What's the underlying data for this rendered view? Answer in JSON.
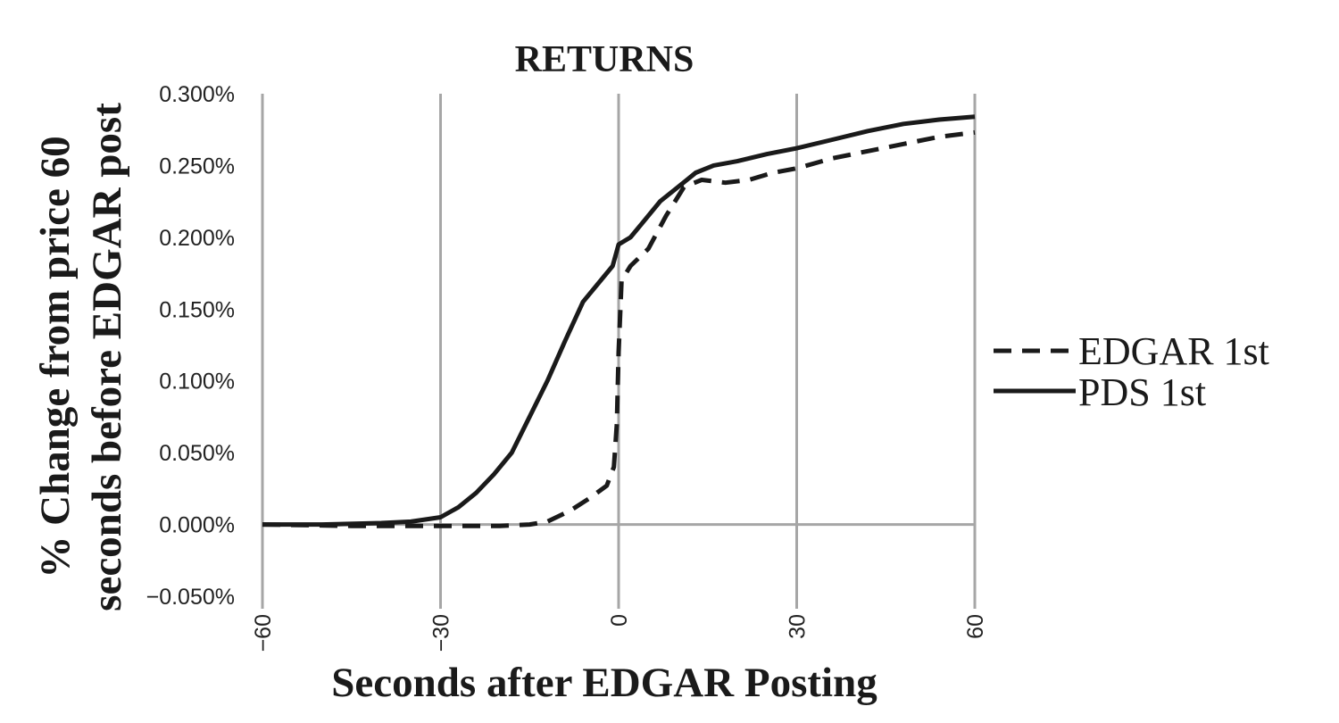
{
  "chart_data": {
    "type": "line",
    "title": "RETURNS",
    "xlabel": "Seconds after EDGAR Posting",
    "ylabel_line1": "% Change from price 60",
    "ylabel_line2": "seconds before EDGAR post",
    "xlim": [
      -60,
      60
    ],
    "ylim": [
      -0.05,
      0.3
    ],
    "x_ticks": [
      -60,
      -30,
      0,
      30,
      60
    ],
    "x_tick_labels": [
      "−60",
      "−30",
      "0",
      "30",
      "60"
    ],
    "y_ticks": [
      0.3,
      0.25,
      0.2,
      0.15,
      0.1,
      0.05,
      0.0,
      -0.05
    ],
    "y_tick_labels": [
      "0.300%",
      "0.250%",
      "0.200%",
      "0.150%",
      "0.100%",
      "0.050%",
      "0.000%",
      "−0.050%"
    ],
    "grid": "vertical",
    "legend_position": "right",
    "series": [
      {
        "name": "EDGAR 1st",
        "style": "dashed",
        "color": "#1a1a1a",
        "points": [
          [
            -60,
            0.0
          ],
          [
            -45,
            -0.001
          ],
          [
            -40,
            -0.001
          ],
          [
            -30,
            -0.001
          ],
          [
            -20,
            -0.001
          ],
          [
            -15,
            0.0
          ],
          [
            -12,
            0.002
          ],
          [
            -8,
            0.01
          ],
          [
            -5,
            0.018
          ],
          [
            -2,
            0.027
          ],
          [
            -0.8,
            0.04
          ],
          [
            -0.3,
            0.07
          ],
          [
            0,
            0.12
          ],
          [
            0.5,
            0.17
          ],
          [
            2,
            0.18
          ],
          [
            5,
            0.192
          ],
          [
            8,
            0.215
          ],
          [
            11,
            0.235
          ],
          [
            14,
            0.24
          ],
          [
            18,
            0.238
          ],
          [
            22,
            0.24
          ],
          [
            26,
            0.245
          ],
          [
            30,
            0.248
          ],
          [
            36,
            0.255
          ],
          [
            42,
            0.26
          ],
          [
            48,
            0.265
          ],
          [
            54,
            0.27
          ],
          [
            60,
            0.273
          ]
        ]
      },
      {
        "name": "PDS 1st",
        "style": "solid",
        "color": "#1a1a1a",
        "points": [
          [
            -60,
            0.0
          ],
          [
            -50,
            0.0
          ],
          [
            -40,
            0.001
          ],
          [
            -35,
            0.002
          ],
          [
            -30,
            0.005
          ],
          [
            -27,
            0.012
          ],
          [
            -24,
            0.022
          ],
          [
            -21,
            0.035
          ],
          [
            -18,
            0.05
          ],
          [
            -15,
            0.075
          ],
          [
            -12,
            0.1
          ],
          [
            -9,
            0.128
          ],
          [
            -6,
            0.155
          ],
          [
            -3,
            0.17
          ],
          [
            -1,
            0.18
          ],
          [
            0,
            0.195
          ],
          [
            2,
            0.2
          ],
          [
            4,
            0.21
          ],
          [
            7,
            0.225
          ],
          [
            10,
            0.235
          ],
          [
            13,
            0.245
          ],
          [
            16,
            0.25
          ],
          [
            20,
            0.253
          ],
          [
            25,
            0.258
          ],
          [
            30,
            0.262
          ],
          [
            36,
            0.268
          ],
          [
            42,
            0.274
          ],
          [
            48,
            0.279
          ],
          [
            54,
            0.282
          ],
          [
            60,
            0.284
          ]
        ]
      }
    ]
  }
}
